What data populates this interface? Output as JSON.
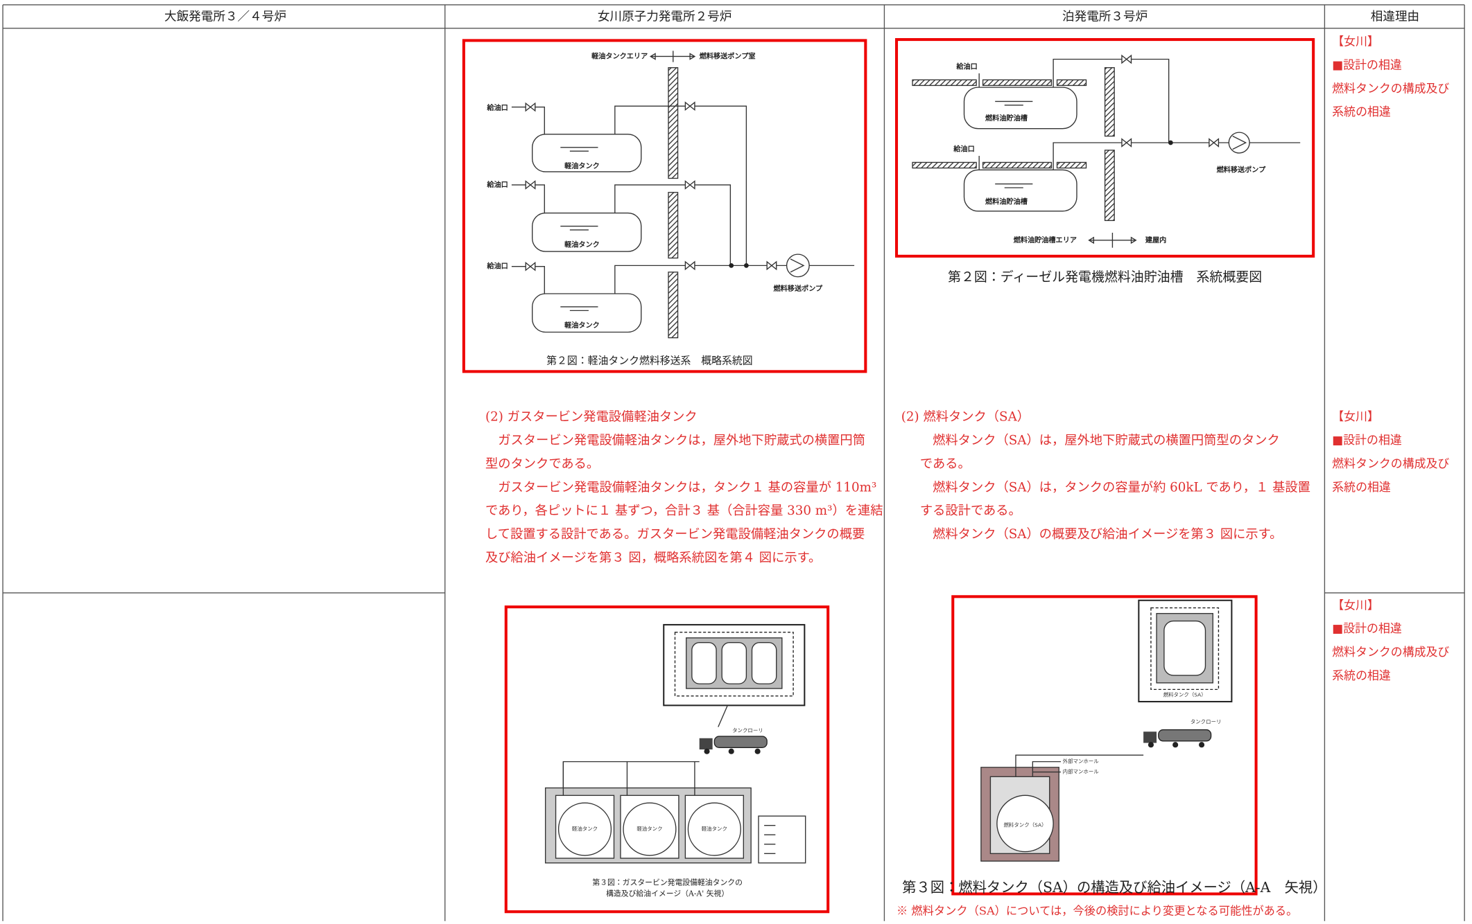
{
  "table": {
    "header": [
      "大飯発電所３／４号炉",
      "女川原子力発電所２号炉",
      "泊発電所３号炉",
      "相違理由"
    ],
    "rows": [
      {
        "onagawa": {
          "figure": {
            "area_label": "軽油タンクエリア",
            "room_label": "燃料移送ポンプ室",
            "inlet_labels": [
              "給油口",
              "給油口",
              "給油口"
            ],
            "tank_labels": [
              "軽油タンク",
              "軽油タンク",
              "軽油タンク"
            ],
            "pump_label": "燃料移送ポンプ",
            "caption": "第２図：軽油タンク燃料移送系　概略系統図"
          }
        },
        "tomari": {
          "figure": {
            "inlet_labels": [
              "給油口",
              "給油口"
            ],
            "tank_labels": [
              "燃料油貯油槽",
              "燃料油貯油槽"
            ],
            "pump_label": "燃料移送ポンプ",
            "area_label": "燃料油貯油槽エリア",
            "building_label": "建屋内",
            "caption": "第２図：ディーゼル発電機燃料油貯油槽　系統概要図"
          }
        },
        "reason": [
          "【女川】",
          "■設計の相違",
          "燃料タンクの構成及び",
          "系統の相違"
        ]
      },
      {
        "onagawa": {
          "lines": [
            "(2) ガスタービン発電設備軽油タンク",
            "　ガスタービン発電設備軽油タンクは，屋外地下貯蔵式の横置円筒",
            "型のタンクである。",
            "　ガスタービン発電設備軽油タンクは，タンク１ 基の容量が 110m³",
            "であり，各ピットに１ 基ずつ，合計３ 基（合計容量 330 m³）を連結",
            "して設置する設計である。ガスタービン発電設備軽油タンクの概要",
            "及び給油イメージを第３ 図，概略系統図を第４ 図に示す。"
          ]
        },
        "tomari": {
          "lines": [
            "(2) 燃料タンク（SA）",
            "　燃料タンク（SA）は，屋外地下貯蔵式の横置円筒型のタンク",
            "である。",
            "　燃料タンク（SA）は，タンクの容量が約 60kL であり，１ 基設置",
            "する設計である。",
            "　燃料タンク（SA）の概要及び給油イメージを第３ 図に示す。"
          ]
        },
        "reason": [
          "【女川】",
          "■設計の相違",
          "燃料タンクの構成及び",
          "系統の相違"
        ]
      },
      {
        "onagawa": {
          "figure": {
            "truck_label": "タンクローリ",
            "tank_labels": [
              "軽油タンク",
              "軽油タンク",
              "軽油タンク"
            ],
            "caption": [
              "第３図：ガスタービン発電設備軽油タンクの",
              "構造及び給油イメージ（A-A' 矢視）"
            ]
          }
        },
        "tomari": {
          "figure": {
            "top_label": "燃料タンク（SA）",
            "truck_label": "タンクローリ",
            "manhole_labels": [
              "外部マンホール",
              "内部マンホール"
            ],
            "tank_label": "燃料タンク（SA）",
            "caption": "第３図：燃料タンク（SA）の構造及び給油イメージ（A-A　矢視）",
            "note": "※ 燃料タンク（SA）については，今後の検討により変更となる可能性がある。"
          }
        },
        "reason": [
          "【女川】",
          "■設計の相違",
          "燃料タンクの構成及び",
          "系統の相違"
        ]
      }
    ]
  }
}
